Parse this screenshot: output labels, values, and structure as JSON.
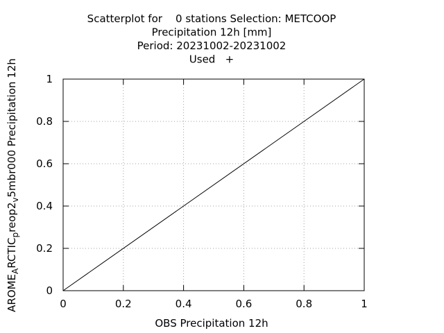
{
  "chart_data": {
    "type": "scatter",
    "title_lines": [
      "Scatterplot for    0 stations Selection: METCOOP",
      "Precipitation 12h [mm]",
      "Period: 20231002-20231002",
      "Used   +"
    ],
    "xlabel": "OBS Precipitation 12h",
    "ylabel": {
      "parts": [
        {
          "text": "AROME",
          "sub": false
        },
        {
          "text": "A",
          "sub": true
        },
        {
          "text": "RCTIC",
          "sub": false
        },
        {
          "text": "p",
          "sub": true
        },
        {
          "text": "reop2",
          "sub": false
        },
        {
          "text": "v",
          "sub": true
        },
        {
          "text": "5mbr000 Precipitation 12h",
          "sub": false
        }
      ]
    },
    "xlim": [
      0,
      1
    ],
    "ylim": [
      0,
      1
    ],
    "x_ticks": [
      "0",
      "0.2",
      "0.4",
      "0.6",
      "0.8",
      "1"
    ],
    "y_ticks": [
      "0",
      "0.2",
      "0.4",
      "0.6",
      "0.8",
      "1"
    ],
    "grid": true,
    "points": [],
    "reference_line": {
      "x": [
        0,
        1
      ],
      "y": [
        0,
        1
      ]
    }
  }
}
